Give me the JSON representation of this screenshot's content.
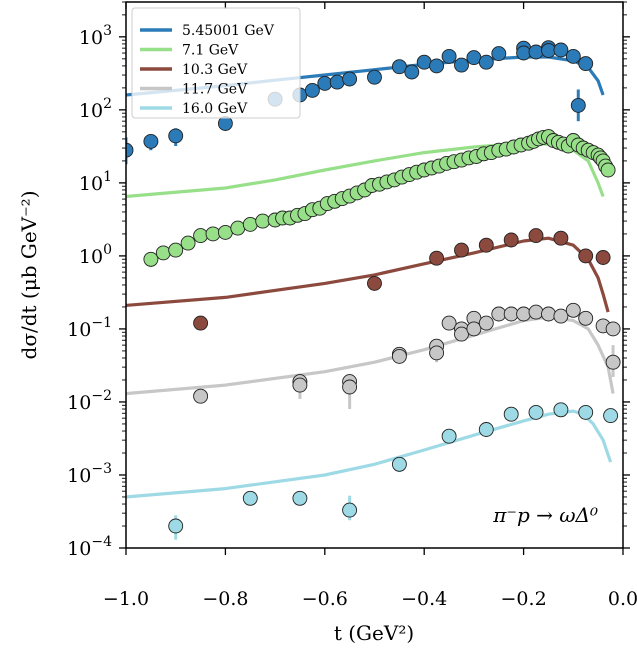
{
  "chart_data": {
    "type": "scatter",
    "xlabel": "t (GeV²)",
    "ylabel": "dσ/dt (μb GeV⁻²)",
    "xlim": [
      -1.0,
      0.0
    ],
    "ylim": [
      0.0001,
      3000
    ],
    "yscale": "log",
    "x_ticks": [
      {
        "v": -1.0,
        "label": "−1.0"
      },
      {
        "v": -0.8,
        "label": "−0.8"
      },
      {
        "v": -0.6,
        "label": "−0.6"
      },
      {
        "v": -0.4,
        "label": "−0.4"
      },
      {
        "v": -0.2,
        "label": "−0.2"
      },
      {
        "v": 0.0,
        "label": "0.0"
      }
    ],
    "y_ticks": [
      {
        "v": 0.0001,
        "base": "10",
        "exp": "−4"
      },
      {
        "v": 0.001,
        "base": "10",
        "exp": "−3"
      },
      {
        "v": 0.01,
        "base": "10",
        "exp": "−2"
      },
      {
        "v": 0.1,
        "base": "10",
        "exp": "−1"
      },
      {
        "v": 1,
        "base": "10",
        "exp": "0"
      },
      {
        "v": 10,
        "base": "10",
        "exp": "1"
      },
      {
        "v": 100,
        "base": "10",
        "exp": "2"
      },
      {
        "v": 1000,
        "base": "10",
        "exp": "3"
      }
    ],
    "legend_position": "top-left",
    "annotation": "π⁻p → ωΔ⁰",
    "series": [
      {
        "name": "5.45001 GeV",
        "line_color": "#2b7bb9",
        "marker_color": "#2b7bb9",
        "curve": [
          [
            -1.0,
            160
          ],
          [
            -0.9,
            185
          ],
          [
            -0.8,
            215
          ],
          [
            -0.7,
            255
          ],
          [
            -0.6,
            300
          ],
          [
            -0.5,
            355
          ],
          [
            -0.4,
            420
          ],
          [
            -0.3,
            480
          ],
          [
            -0.2,
            530
          ],
          [
            -0.15,
            530
          ],
          [
            -0.1,
            470
          ],
          [
            -0.07,
            380
          ],
          [
            -0.05,
            250
          ],
          [
            -0.04,
            160
          ]
        ],
        "points": [
          [
            -1.0,
            28
          ],
          [
            -0.95,
            37
          ],
          [
            -0.9,
            44
          ],
          [
            -0.8,
            65
          ],
          [
            -0.7,
            140
          ],
          [
            -0.65,
            160
          ],
          [
            -0.625,
            185
          ],
          [
            -0.6,
            230
          ],
          [
            -0.575,
            240
          ],
          [
            -0.55,
            265
          ],
          [
            -0.5,
            280
          ],
          [
            -0.45,
            390
          ],
          [
            -0.425,
            330
          ],
          [
            -0.4,
            450
          ],
          [
            -0.375,
            400
          ],
          [
            -0.35,
            540
          ],
          [
            -0.325,
            410
          ],
          [
            -0.3,
            520
          ],
          [
            -0.275,
            450
          ],
          [
            -0.25,
            590
          ],
          [
            -0.2,
            700
          ],
          [
            -0.2,
            600
          ],
          [
            -0.175,
            620
          ],
          [
            -0.15,
            710
          ],
          [
            -0.15,
            650
          ],
          [
            -0.125,
            660
          ],
          [
            -0.1,
            540
          ],
          [
            -0.075,
            430
          ],
          [
            -0.09,
            115
          ]
        ]
      },
      {
        "name": "7.1 GeV",
        "line_color": "#98df8a",
        "marker_color": "#98df8a",
        "curve": [
          [
            -1.0,
            6.5
          ],
          [
            -0.8,
            8.5
          ],
          [
            -0.7,
            11
          ],
          [
            -0.6,
            15
          ],
          [
            -0.5,
            20
          ],
          [
            -0.4,
            26
          ],
          [
            -0.3,
            31
          ],
          [
            -0.2,
            35
          ],
          [
            -0.15,
            34
          ],
          [
            -0.1,
            28
          ],
          [
            -0.07,
            20
          ],
          [
            -0.05,
            10
          ],
          [
            -0.04,
            6.5
          ]
        ],
        "points": [
          [
            -0.95,
            0.9
          ],
          [
            -0.925,
            1.1
          ],
          [
            -0.9,
            1.2
          ],
          [
            -0.875,
            1.5
          ],
          [
            -0.85,
            1.9
          ],
          [
            -0.825,
            2.0
          ],
          [
            -0.8,
            2.1
          ],
          [
            -0.775,
            2.4
          ],
          [
            -0.75,
            2.7
          ],
          [
            -0.725,
            3.0
          ],
          [
            -0.7,
            3.1
          ],
          [
            -0.685,
            3.3
          ],
          [
            -0.67,
            3.3
          ],
          [
            -0.655,
            3.6
          ],
          [
            -0.64,
            3.8
          ],
          [
            -0.625,
            4.3
          ],
          [
            -0.61,
            4.5
          ],
          [
            -0.595,
            5.2
          ],
          [
            -0.58,
            5.6
          ],
          [
            -0.565,
            6.1
          ],
          [
            -0.55,
            6.6
          ],
          [
            -0.535,
            7.3
          ],
          [
            -0.52,
            8.0
          ],
          [
            -0.505,
            9.2
          ],
          [
            -0.49,
            9.6
          ],
          [
            -0.475,
            10.3
          ],
          [
            -0.46,
            11.0
          ],
          [
            -0.445,
            12.0
          ],
          [
            -0.43,
            13.0
          ],
          [
            -0.415,
            14.0
          ],
          [
            -0.4,
            15.0
          ],
          [
            -0.385,
            16.0
          ],
          [
            -0.37,
            17.0
          ],
          [
            -0.355,
            18.5
          ],
          [
            -0.34,
            19.5
          ],
          [
            -0.325,
            20.5
          ],
          [
            -0.31,
            22.0
          ],
          [
            -0.295,
            23.0
          ],
          [
            -0.28,
            25.0
          ],
          [
            -0.265,
            26.0
          ],
          [
            -0.25,
            28.0
          ],
          [
            -0.235,
            29.0
          ],
          [
            -0.22,
            31.0
          ],
          [
            -0.205,
            33.0
          ],
          [
            -0.19,
            35.0
          ],
          [
            -0.18,
            37.0
          ],
          [
            -0.17,
            40.0
          ],
          [
            -0.16,
            42.0
          ],
          [
            -0.15,
            43.0
          ],
          [
            -0.14,
            38.0
          ],
          [
            -0.13,
            36.0
          ],
          [
            -0.12,
            34.0
          ],
          [
            -0.11,
            32.0
          ],
          [
            -0.1,
            38.0
          ],
          [
            -0.09,
            33.0
          ],
          [
            -0.08,
            30.0
          ],
          [
            -0.07,
            28.0
          ],
          [
            -0.06,
            26.0
          ],
          [
            -0.05,
            24.0
          ],
          [
            -0.045,
            22.0
          ],
          [
            -0.04,
            20.0
          ],
          [
            -0.035,
            17.0
          ],
          [
            -0.03,
            15.0
          ]
        ]
      },
      {
        "name": "10.3 GeV",
        "line_color": "#8c4a3e",
        "marker_color": "#8c4a3e",
        "curve": [
          [
            -1.0,
            0.21
          ],
          [
            -0.8,
            0.27
          ],
          [
            -0.6,
            0.42
          ],
          [
            -0.5,
            0.55
          ],
          [
            -0.4,
            0.78
          ],
          [
            -0.3,
            1.1
          ],
          [
            -0.2,
            1.6
          ],
          [
            -0.15,
            1.75
          ],
          [
            -0.1,
            1.4
          ],
          [
            -0.07,
            0.9
          ],
          [
            -0.05,
            0.5
          ],
          [
            -0.04,
            0.3
          ],
          [
            -0.03,
            0.17
          ]
        ],
        "points": [
          [
            -0.85,
            0.12
          ],
          [
            -0.5,
            0.42
          ],
          [
            -0.375,
            0.93
          ],
          [
            -0.325,
            1.2
          ],
          [
            -0.275,
            1.4
          ],
          [
            -0.225,
            1.65
          ],
          [
            -0.175,
            1.9
          ],
          [
            -0.125,
            1.75
          ],
          [
            -0.075,
            1.0
          ],
          [
            -0.04,
            0.95
          ]
        ]
      },
      {
        "name": "11.7 GeV",
        "line_color": "#c7c7c7",
        "marker_color": "#c7c7c7",
        "curve": [
          [
            -1.0,
            0.013
          ],
          [
            -0.8,
            0.017
          ],
          [
            -0.6,
            0.026
          ],
          [
            -0.5,
            0.035
          ],
          [
            -0.4,
            0.052
          ],
          [
            -0.3,
            0.082
          ],
          [
            -0.2,
            0.13
          ],
          [
            -0.15,
            0.145
          ],
          [
            -0.1,
            0.13
          ],
          [
            -0.07,
            0.1
          ],
          [
            -0.05,
            0.06
          ],
          [
            -0.03,
            0.03
          ],
          [
            -0.02,
            0.013
          ]
        ],
        "points": [
          [
            -0.85,
            0.012
          ],
          [
            -0.65,
            0.019
          ],
          [
            -0.65,
            0.017
          ],
          [
            -0.55,
            0.019
          ],
          [
            -0.55,
            0.016
          ],
          [
            -0.45,
            0.045
          ],
          [
            -0.45,
            0.042
          ],
          [
            -0.375,
            0.058
          ],
          [
            -0.375,
            0.047
          ],
          [
            -0.35,
            0.12
          ],
          [
            -0.325,
            0.1
          ],
          [
            -0.325,
            0.085
          ],
          [
            -0.3,
            0.14
          ],
          [
            -0.3,
            0.1
          ],
          [
            -0.275,
            0.12
          ],
          [
            -0.25,
            0.16
          ],
          [
            -0.225,
            0.16
          ],
          [
            -0.2,
            0.16
          ],
          [
            -0.175,
            0.17
          ],
          [
            -0.15,
            0.16
          ],
          [
            -0.125,
            0.15
          ],
          [
            -0.1,
            0.18
          ],
          [
            -0.075,
            0.14
          ],
          [
            -0.04,
            0.11
          ],
          [
            -0.02,
            0.1
          ],
          [
            -0.02,
            0.035
          ]
        ]
      },
      {
        "name": "16.0 GeV",
        "line_color": "#9edae5",
        "marker_color": "#9edae5",
        "curve": [
          [
            -1.0,
            0.0005
          ],
          [
            -0.8,
            0.00065
          ],
          [
            -0.6,
            0.001
          ],
          [
            -0.5,
            0.0014
          ],
          [
            -0.4,
            0.0022
          ],
          [
            -0.3,
            0.0035
          ],
          [
            -0.2,
            0.0055
          ],
          [
            -0.15,
            0.0068
          ],
          [
            -0.1,
            0.0075
          ],
          [
            -0.08,
            0.0068
          ],
          [
            -0.06,
            0.005
          ],
          [
            -0.04,
            0.003
          ],
          [
            -0.025,
            0.0015
          ]
        ],
        "points": [
          [
            -0.9,
            0.0002
          ],
          [
            -0.75,
            0.00048
          ],
          [
            -0.65,
            0.00048
          ],
          [
            -0.55,
            0.00033
          ],
          [
            -0.45,
            0.0014
          ],
          [
            -0.35,
            0.0034
          ],
          [
            -0.275,
            0.0042
          ],
          [
            -0.225,
            0.0068
          ],
          [
            -0.175,
            0.0072
          ],
          [
            -0.125,
            0.0078
          ],
          [
            -0.075,
            0.0072
          ],
          [
            -0.025,
            0.0065
          ]
        ]
      }
    ],
    "error_bars": [
      {
        "series": 0,
        "x": -1.0,
        "lo": 18,
        "hi": 42
      },
      {
        "series": 0,
        "x": -0.95,
        "lo": 28,
        "hi": 46
      },
      {
        "series": 0,
        "x": -0.9,
        "lo": 32,
        "hi": 56
      },
      {
        "series": 0,
        "x": -0.09,
        "lo": 70,
        "hi": 190
      },
      {
        "series": 1,
        "x": -0.95,
        "lo": 0.7,
        "hi": 1.1
      },
      {
        "series": 3,
        "x": -0.65,
        "lo": 0.011,
        "hi": 0.024
      },
      {
        "series": 3,
        "x": -0.55,
        "lo": 0.008,
        "hi": 0.024
      },
      {
        "series": 3,
        "x": -0.45,
        "lo": 0.036,
        "hi": 0.05
      },
      {
        "series": 3,
        "x": -0.375,
        "lo": 0.035,
        "hi": 0.062
      },
      {
        "series": 3,
        "x": -0.02,
        "lo": 0.022,
        "hi": 0.06
      },
      {
        "series": 4,
        "x": -0.9,
        "lo": 0.00013,
        "hi": 0.00028
      },
      {
        "series": 4,
        "x": -0.75,
        "lo": 0.0004,
        "hi": 0.0006
      },
      {
        "series": 4,
        "x": -0.65,
        "lo": 0.0004,
        "hi": 0.0006
      },
      {
        "series": 4,
        "x": -0.55,
        "lo": 0.00024,
        "hi": 0.00052
      },
      {
        "series": 4,
        "x": -0.45,
        "lo": 0.0011,
        "hi": 0.0017
      }
    ]
  }
}
